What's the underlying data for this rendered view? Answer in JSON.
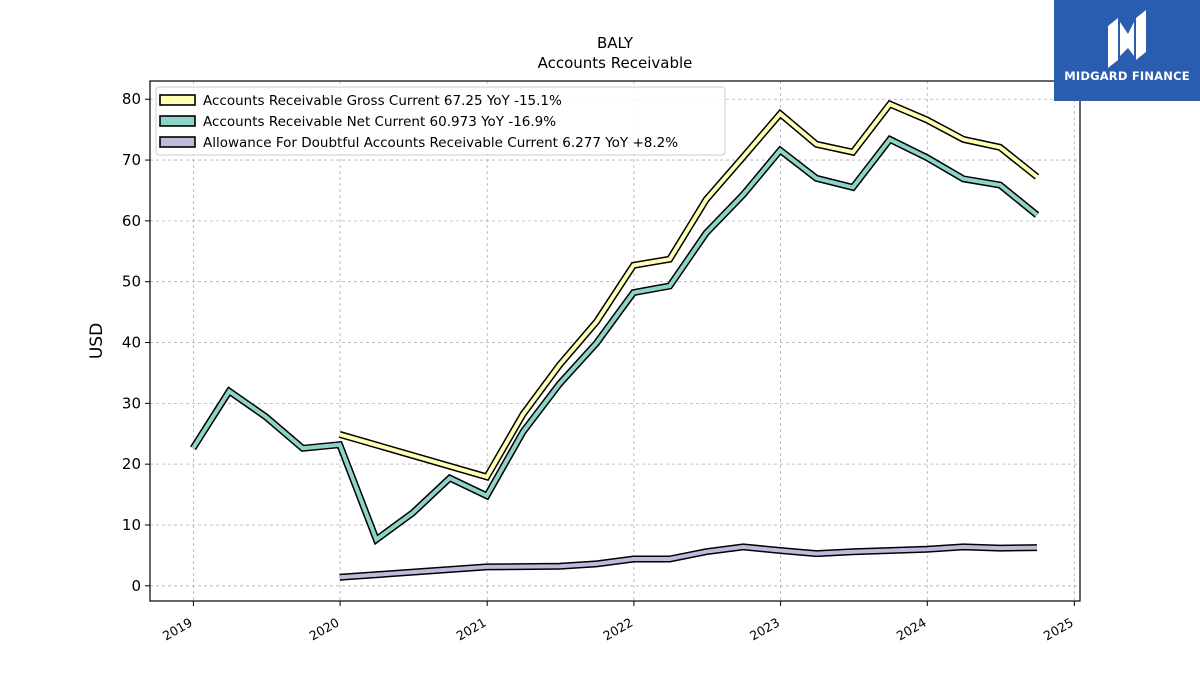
{
  "brand": {
    "logo_text": "MIDGARD FINANCE"
  },
  "chart_data": {
    "type": "line",
    "title": "BALY",
    "subtitle": "Accounts Receivable",
    "xlabel": "",
    "ylabel": "USD",
    "ylim": [
      -2.5,
      83
    ],
    "xlim": [
      "2018-09-15",
      "2025-01-15"
    ],
    "grid": true,
    "legend_position": "top-left",
    "y_ticks": [
      0,
      10,
      20,
      30,
      40,
      50,
      60,
      70,
      80
    ],
    "x_ticks": [
      "2019",
      "2020",
      "2021",
      "2022",
      "2023",
      "2024",
      "2025"
    ],
    "series": [
      {
        "name": "Accounts Receivable Gross Current",
        "legend_label": "Accounts Receivable Gross Current  67.25 YoY -15.1%",
        "color": "#ffffb3",
        "points": [
          [
            "2019-12-31",
            24.9
          ],
          [
            "2020-12-31",
            17.9
          ],
          [
            "2021-03-31",
            28.2
          ],
          [
            "2021-06-30",
            36.3
          ],
          [
            "2021-09-30",
            43.4
          ],
          [
            "2021-12-31",
            52.7
          ],
          [
            "2022-03-31",
            53.7
          ],
          [
            "2022-06-30",
            63.5
          ],
          [
            "2022-09-30",
            70.5
          ],
          [
            "2022-12-31",
            77.6
          ],
          [
            "2023-03-31",
            72.6
          ],
          [
            "2023-06-30",
            71.3
          ],
          [
            "2023-09-30",
            79.2
          ],
          [
            "2023-12-31",
            76.6
          ],
          [
            "2024-03-31",
            73.4
          ],
          [
            "2024-06-30",
            72.1
          ],
          [
            "2024-09-30",
            67.25
          ]
        ]
      },
      {
        "name": "Accounts Receivable Net Current",
        "legend_label": "Accounts Receivable Net Current  60.973 YoY -16.9%",
        "color": "#8dd3c7",
        "points": [
          [
            "2018-12-31",
            22.6
          ],
          [
            "2019-03-31",
            32.0
          ],
          [
            "2019-06-30",
            27.8
          ],
          [
            "2019-09-30",
            22.6
          ],
          [
            "2019-12-31",
            23.2
          ],
          [
            "2020-03-31",
            7.6
          ],
          [
            "2020-06-30",
            12.0
          ],
          [
            "2020-09-30",
            17.7
          ],
          [
            "2020-12-31",
            14.8
          ],
          [
            "2021-03-31",
            25.3
          ],
          [
            "2021-06-30",
            33.2
          ],
          [
            "2021-09-30",
            39.9
          ],
          [
            "2021-12-31",
            48.2
          ],
          [
            "2022-03-31",
            49.3
          ],
          [
            "2022-06-30",
            58.0
          ],
          [
            "2022-09-30",
            64.3
          ],
          [
            "2022-12-31",
            71.6
          ],
          [
            "2023-03-31",
            67.0
          ],
          [
            "2023-06-30",
            65.5
          ],
          [
            "2023-09-30",
            73.4
          ],
          [
            "2023-12-31",
            70.4
          ],
          [
            "2024-03-31",
            66.9
          ],
          [
            "2024-06-30",
            65.9
          ],
          [
            "2024-09-30",
            60.973
          ]
        ]
      },
      {
        "name": "Allowance For Doubtful Accounts Receivable Current",
        "legend_label": "Allowance For Doubtful Accounts Receivable Current  6.277 YoY +8.2%",
        "color": "#bebada",
        "points": [
          [
            "2019-12-31",
            1.4
          ],
          [
            "2020-12-31",
            3.1
          ],
          [
            "2021-06-30",
            3.2
          ],
          [
            "2021-09-30",
            3.6
          ],
          [
            "2021-12-31",
            4.4
          ],
          [
            "2022-03-31",
            4.4
          ],
          [
            "2022-06-30",
            5.6
          ],
          [
            "2022-09-30",
            6.4
          ],
          [
            "2022-12-31",
            5.8
          ],
          [
            "2023-03-31",
            5.3
          ],
          [
            "2023-06-30",
            5.6
          ],
          [
            "2023-09-30",
            5.8
          ],
          [
            "2023-12-31",
            6.0
          ],
          [
            "2024-03-31",
            6.4
          ],
          [
            "2024-06-30",
            6.2
          ],
          [
            "2024-09-30",
            6.277
          ]
        ]
      }
    ]
  }
}
